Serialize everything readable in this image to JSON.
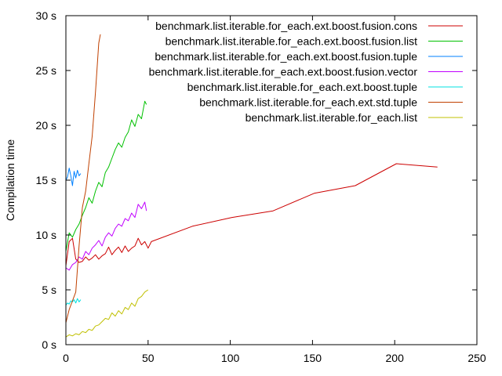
{
  "chart_data": {
    "type": "line",
    "title": "",
    "xlabel": "",
    "ylabel": "Compilation time",
    "xlim": [
      0,
      250
    ],
    "ylim": [
      0,
      30
    ],
    "xticks": [
      0,
      50,
      100,
      150,
      200,
      250
    ],
    "yticks": [
      0,
      5,
      10,
      15,
      20,
      25,
      30
    ],
    "xtick_labels": [
      "0",
      "50",
      "100",
      "150",
      "200",
      "250"
    ],
    "ytick_labels": [
      "0 s",
      "5 s",
      "10 s",
      "15 s",
      "20 s",
      "25 s",
      "30 s"
    ],
    "grid": false,
    "legend_position": "top-right",
    "series": [
      {
        "name": "benchmark.list.iterable.for_each.ext.boost.fusion.cons",
        "color": "#cc0000",
        "x": [
          0,
          2,
          4,
          6,
          8,
          10,
          12,
          14,
          16,
          18,
          20,
          22,
          24,
          26,
          28,
          30,
          32,
          34,
          36,
          38,
          40,
          42,
          44,
          46,
          48,
          50,
          52,
          77,
          101,
          126,
          151,
          176,
          201,
          226
        ],
        "y": [
          7.2,
          9.4,
          9.7,
          7.8,
          7.5,
          7.6,
          8.0,
          7.7,
          7.9,
          8.2,
          7.8,
          8.1,
          8.3,
          8.9,
          8.2,
          8.6,
          8.9,
          8.4,
          9.0,
          8.5,
          8.8,
          9.0,
          9.7,
          9.1,
          9.4,
          8.8,
          9.4,
          10.8,
          11.6,
          12.2,
          13.8,
          14.5,
          16.5,
          16.2
        ]
      },
      {
        "name": "benchmark.list.iterable.for_each.ext.boost.fusion.list",
        "color": "#00c000",
        "x": [
          0,
          2,
          4,
          6,
          8,
          10,
          12,
          14,
          16,
          18,
          20,
          22,
          24,
          26,
          28,
          30,
          32,
          34,
          36,
          38,
          40,
          42,
          44,
          46,
          48,
          49
        ],
        "y": [
          8.5,
          10.2,
          9.8,
          10.5,
          11.0,
          11.8,
          12.5,
          13.4,
          12.9,
          14.0,
          14.8,
          14.4,
          15.7,
          16.2,
          17.0,
          17.8,
          18.4,
          18.0,
          18.9,
          19.4,
          20.5,
          19.9,
          21.0,
          20.6,
          22.2,
          21.9
        ]
      },
      {
        "name": "benchmark.list.iterable.for_each.ext.boost.fusion.tuple",
        "color": "#0080ff",
        "x": [
          0,
          1,
          2,
          3,
          4,
          5,
          6,
          7,
          8,
          9
        ],
        "y": [
          15.0,
          15.3,
          16.1,
          15.4,
          14.5,
          15.8,
          15.2,
          15.9,
          15.4,
          15.6
        ]
      },
      {
        "name": "benchmark.list.iterable.for_each.ext.boost.fusion.vector",
        "color": "#c000ff",
        "x": [
          0,
          2,
          4,
          6,
          8,
          10,
          12,
          14,
          16,
          18,
          20,
          22,
          24,
          26,
          28,
          30,
          32,
          34,
          36,
          38,
          40,
          42,
          44,
          46,
          48,
          49
        ],
        "y": [
          7.0,
          6.8,
          7.3,
          7.5,
          8.0,
          7.8,
          8.5,
          8.2,
          8.8,
          9.1,
          9.5,
          9.0,
          9.8,
          10.2,
          9.9,
          10.6,
          11.0,
          10.8,
          11.5,
          11.3,
          12.0,
          11.6,
          12.8,
          12.4,
          13.0,
          12.2
        ]
      },
      {
        "name": "benchmark.list.iterable.for_each.ext.boost.tuple",
        "color": "#00e0e0",
        "x": [
          0,
          1,
          2,
          3,
          4,
          5,
          6,
          7,
          8,
          9
        ],
        "y": [
          3.6,
          3.8,
          3.7,
          4.0,
          3.9,
          4.1,
          3.8,
          4.2,
          3.9,
          4.1
        ]
      },
      {
        "name": "benchmark.list.iterable.for_each.ext.std.tuple",
        "color": "#c04000",
        "x": [
          0,
          2,
          4,
          6,
          8,
          10,
          12,
          14,
          16,
          18,
          20,
          21
        ],
        "y": [
          2.0,
          3.2,
          4.0,
          4.8,
          9.0,
          12.5,
          14.0,
          16.5,
          19.0,
          23.0,
          27.5,
          28.3
        ]
      },
      {
        "name": "benchmark.list.iterable.for_each.list",
        "color": "#c0c000",
        "x": [
          0,
          2,
          4,
          6,
          8,
          10,
          12,
          14,
          16,
          18,
          20,
          22,
          24,
          26,
          28,
          30,
          32,
          34,
          36,
          38,
          40,
          42,
          44,
          46,
          48,
          50
        ],
        "y": [
          0.7,
          0.9,
          0.8,
          1.0,
          0.9,
          1.2,
          1.1,
          1.4,
          1.3,
          1.7,
          1.8,
          2.1,
          2.4,
          2.3,
          2.9,
          2.6,
          3.1,
          2.8,
          3.4,
          3.2,
          3.8,
          3.5,
          4.2,
          4.4,
          4.8,
          5.0
        ]
      }
    ]
  }
}
